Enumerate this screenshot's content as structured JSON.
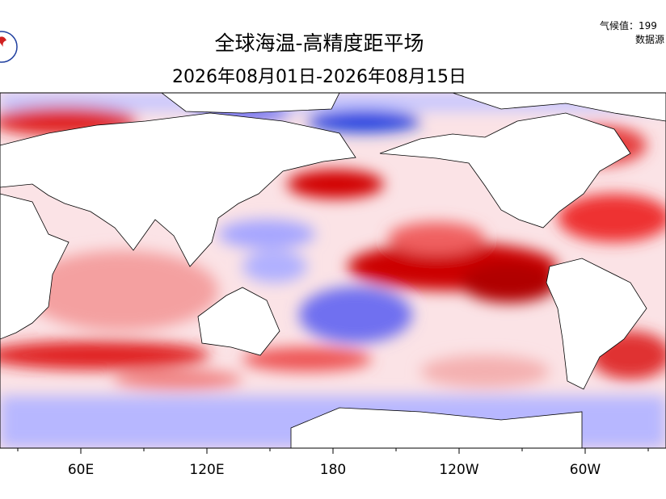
{
  "header": {
    "title": "全球海温-高精度距平场",
    "subtitle": "2026年08月01日-2026年08月15日",
    "note_1": "气候值：199",
    "note_2": "数据源"
  },
  "map": {
    "lon_labels": [
      "60E",
      "120E",
      "180",
      "120W",
      "60W"
    ]
  }
}
